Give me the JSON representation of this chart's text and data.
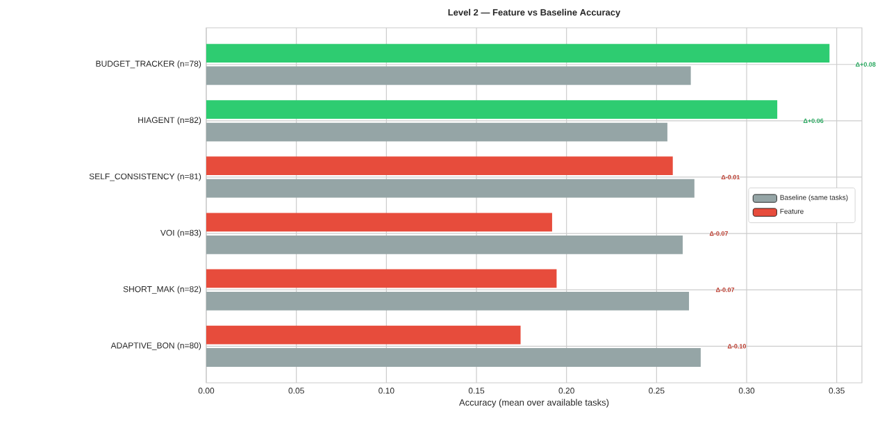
{
  "chart_data": {
    "type": "bar",
    "orientation": "horizontal",
    "title": "Level 2 — Feature vs Baseline Accuracy",
    "xlabel": "Accuracy (mean over available tasks)",
    "categories": [
      "BUDGET_TRACKER (n=78)",
      "HIAGENT (n=82)",
      "SELF_CONSISTENCY (n=81)",
      "VOI (n=83)",
      "SHORT_MAK (n=82)",
      "ADAPTIVE_BON (n=80)"
    ],
    "series": [
      {
        "name": "Baseline (same tasks)",
        "color": "#95a5a6",
        "values": [
          0.269,
          0.256,
          0.271,
          0.2645,
          0.268,
          0.2745
        ]
      },
      {
        "name": "Feature",
        "color": "#e74c3c",
        "colors": [
          "#2ecc71",
          "#2ecc71",
          "#e74c3c",
          "#e74c3c",
          "#e74c3c",
          "#e74c3c"
        ],
        "values": [
          0.346,
          0.317,
          0.259,
          0.192,
          0.1945,
          0.1745
        ]
      }
    ],
    "xlim": [
      0,
      0.364
    ],
    "xticks": [
      {
        "value": 0,
        "label": "0.00"
      },
      {
        "value": 0.05,
        "label": "0.05"
      },
      {
        "value": 0.1,
        "label": "0.10"
      },
      {
        "value": 0.15,
        "label": "0.15"
      },
      {
        "value": 0.2,
        "label": "0.20"
      },
      {
        "value": 0.25,
        "label": "0.25"
      },
      {
        "value": 0.3,
        "label": "0.30"
      },
      {
        "value": 0.35,
        "label": "0.35"
      }
    ],
    "grid": true,
    "legend": "right",
    "annotations": [
      "Δ+0.08",
      "Δ+0.06",
      "Δ-0.01",
      "Δ-0.07",
      "Δ-0.07",
      "Δ-0.10"
    ]
  }
}
